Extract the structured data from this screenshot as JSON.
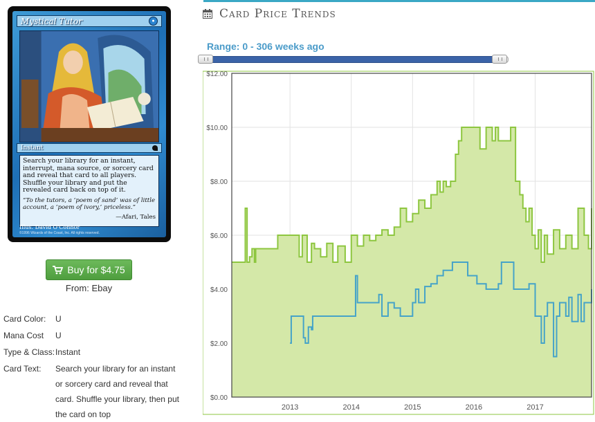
{
  "card": {
    "name": "Mystical Tutor",
    "mana_symbol": "●",
    "type_line": "Instant",
    "rules_text": "Search your library for an instant, interrupt, mana source, or sorcery card and reveal that card to all players. Shuffle your library and put the revealed card back on top of it.",
    "flavor_text": "“To the tutors, a ‘poem of sand’ was of little account, a ‘poem of ivory,’ priceless.”",
    "flavor_attribution": "—Afari, Tales",
    "illustrator": "Illus. David O'Connor",
    "copyright": "©1996 Wizards of the Coast, Inc. All rights reserved."
  },
  "buy": {
    "label": "Buy for $4.75",
    "source": "From: Ebay",
    "icon": "shopping-cart-icon"
  },
  "details": [
    {
      "label": "Card Color:",
      "value": "U"
    },
    {
      "label": "Mana Cost",
      "value": "U"
    },
    {
      "label": "Type & Class:",
      "value": "Instant"
    },
    {
      "label": "Card Text:",
      "value": "Search your library for an instant or sorcery card and reveal that card. Shuffle your library, then put the card on top"
    }
  ],
  "trends": {
    "title": "Card Price Trends",
    "icon": "calendar-icon",
    "range_label": "Range: 0 - 306 weeks ago",
    "range": {
      "min_weeks": 0,
      "max_weeks": 306
    }
  },
  "colors": {
    "accent": "#3aa8c5",
    "green_line": "#8dc63f",
    "green_fill": "#d4e8a8",
    "blue_line": "#45a3c8",
    "button": "#5cb85c"
  },
  "chart_data": {
    "type": "area",
    "x_ticks": [
      "2013",
      "2014",
      "2015",
      "2016",
      "2017"
    ],
    "y_ticks": [
      "$0.00",
      "$2.00",
      "$4.00",
      "$6.00",
      "$8.00",
      "$10.00",
      "$12.00"
    ],
    "ylim": [
      0,
      12
    ],
    "xlim": [
      2012.05,
      2017.92
    ],
    "grid": true,
    "series": [
      {
        "x": [
          2012.05,
          2012.22,
          2012.27,
          2012.3,
          2012.34,
          2012.38,
          2012.42,
          2012.44,
          2012.5,
          2012.6,
          2012.7,
          2012.8,
          2012.95,
          2013.1,
          2013.15,
          2013.2,
          2013.28,
          2013.35,
          2013.4,
          2013.5,
          2013.6,
          2013.7,
          2013.78,
          2013.9,
          2014.0,
          2014.1,
          2014.2,
          2014.3,
          2014.4,
          2014.5,
          2014.6,
          2014.7,
          2014.8,
          2014.9,
          2015.0,
          2015.1,
          2015.2,
          2015.3,
          2015.4,
          2015.45,
          2015.5,
          2015.55,
          2015.62,
          2015.7,
          2015.75,
          2015.8,
          2015.9,
          2016.0,
          2016.1,
          2016.2,
          2016.3,
          2016.35,
          2016.4,
          2016.5,
          2016.6,
          2016.68,
          2016.75,
          2016.8,
          2016.85,
          2016.9,
          2016.95,
          2017.0,
          2017.05,
          2017.1,
          2017.15,
          2017.2,
          2017.3,
          2017.4,
          2017.5,
          2017.6,
          2017.7,
          2017.8,
          2017.87,
          2017.92
        ],
        "y": [
          5.0,
          5.0,
          7.0,
          5.0,
          5.2,
          5.5,
          5.0,
          5.5,
          5.5,
          5.5,
          5.5,
          6.0,
          6.0,
          6.0,
          5.2,
          6.0,
          5.0,
          5.7,
          5.5,
          5.2,
          5.7,
          5.0,
          5.6,
          5.0,
          6.0,
          5.6,
          6.0,
          5.8,
          6.0,
          6.2,
          6.0,
          6.3,
          7.0,
          6.5,
          6.8,
          7.3,
          7.0,
          7.5,
          8.0,
          7.6,
          8.0,
          7.8,
          8.0,
          9.0,
          9.5,
          10.0,
          10.0,
          10.0,
          9.2,
          10.0,
          9.5,
          10.0,
          9.5,
          9.5,
          10.0,
          8.0,
          7.5,
          7.0,
          6.5,
          7.0,
          6.0,
          5.5,
          6.2,
          5.0,
          6.0,
          5.3,
          6.2,
          5.5,
          6.0,
          5.5,
          7.0,
          6.0,
          5.5,
          7.0
        ],
        "color": "#8dc63f",
        "fill": "#d4e8a8"
      },
      {
        "x": [
          2013.0,
          2013.02,
          2013.2,
          2013.22,
          2013.25,
          2013.3,
          2013.35,
          2013.37,
          2013.5,
          2014.05,
          2014.07,
          2014.1,
          2014.4,
          2014.45,
          2014.5,
          2014.6,
          2014.7,
          2014.8,
          2015.0,
          2015.05,
          2015.1,
          2015.2,
          2015.3,
          2015.4,
          2015.5,
          2015.6,
          2015.65,
          2015.85,
          2015.9,
          2016.0,
          2016.05,
          2016.1,
          2016.2,
          2016.3,
          2016.4,
          2016.45,
          2016.6,
          2016.65,
          2016.75,
          2016.85,
          2016.9,
          2017.0,
          2017.05,
          2017.1,
          2017.15,
          2017.2,
          2017.3,
          2017.35,
          2017.4,
          2017.5,
          2017.55,
          2017.6,
          2017.7,
          2017.75,
          2017.8,
          2017.87,
          2017.92
        ],
        "y": [
          2.0,
          3.0,
          3.0,
          2.2,
          2.0,
          2.6,
          2.5,
          3.0,
          3.0,
          3.0,
          4.5,
          3.5,
          3.5,
          3.8,
          3.0,
          3.5,
          3.3,
          3.0,
          3.5,
          4.0,
          3.5,
          4.1,
          4.2,
          4.5,
          4.7,
          4.7,
          5.0,
          5.0,
          4.5,
          4.5,
          4.2,
          4.2,
          4.0,
          4.0,
          4.2,
          5.0,
          5.0,
          4.0,
          4.0,
          4.0,
          4.2,
          3.0,
          3.0,
          2.0,
          3.0,
          3.5,
          1.5,
          3.0,
          3.5,
          3.0,
          3.7,
          2.8,
          3.8,
          2.8,
          3.5,
          3.5,
          4.0
        ],
        "color": "#45a3c8"
      }
    ]
  }
}
